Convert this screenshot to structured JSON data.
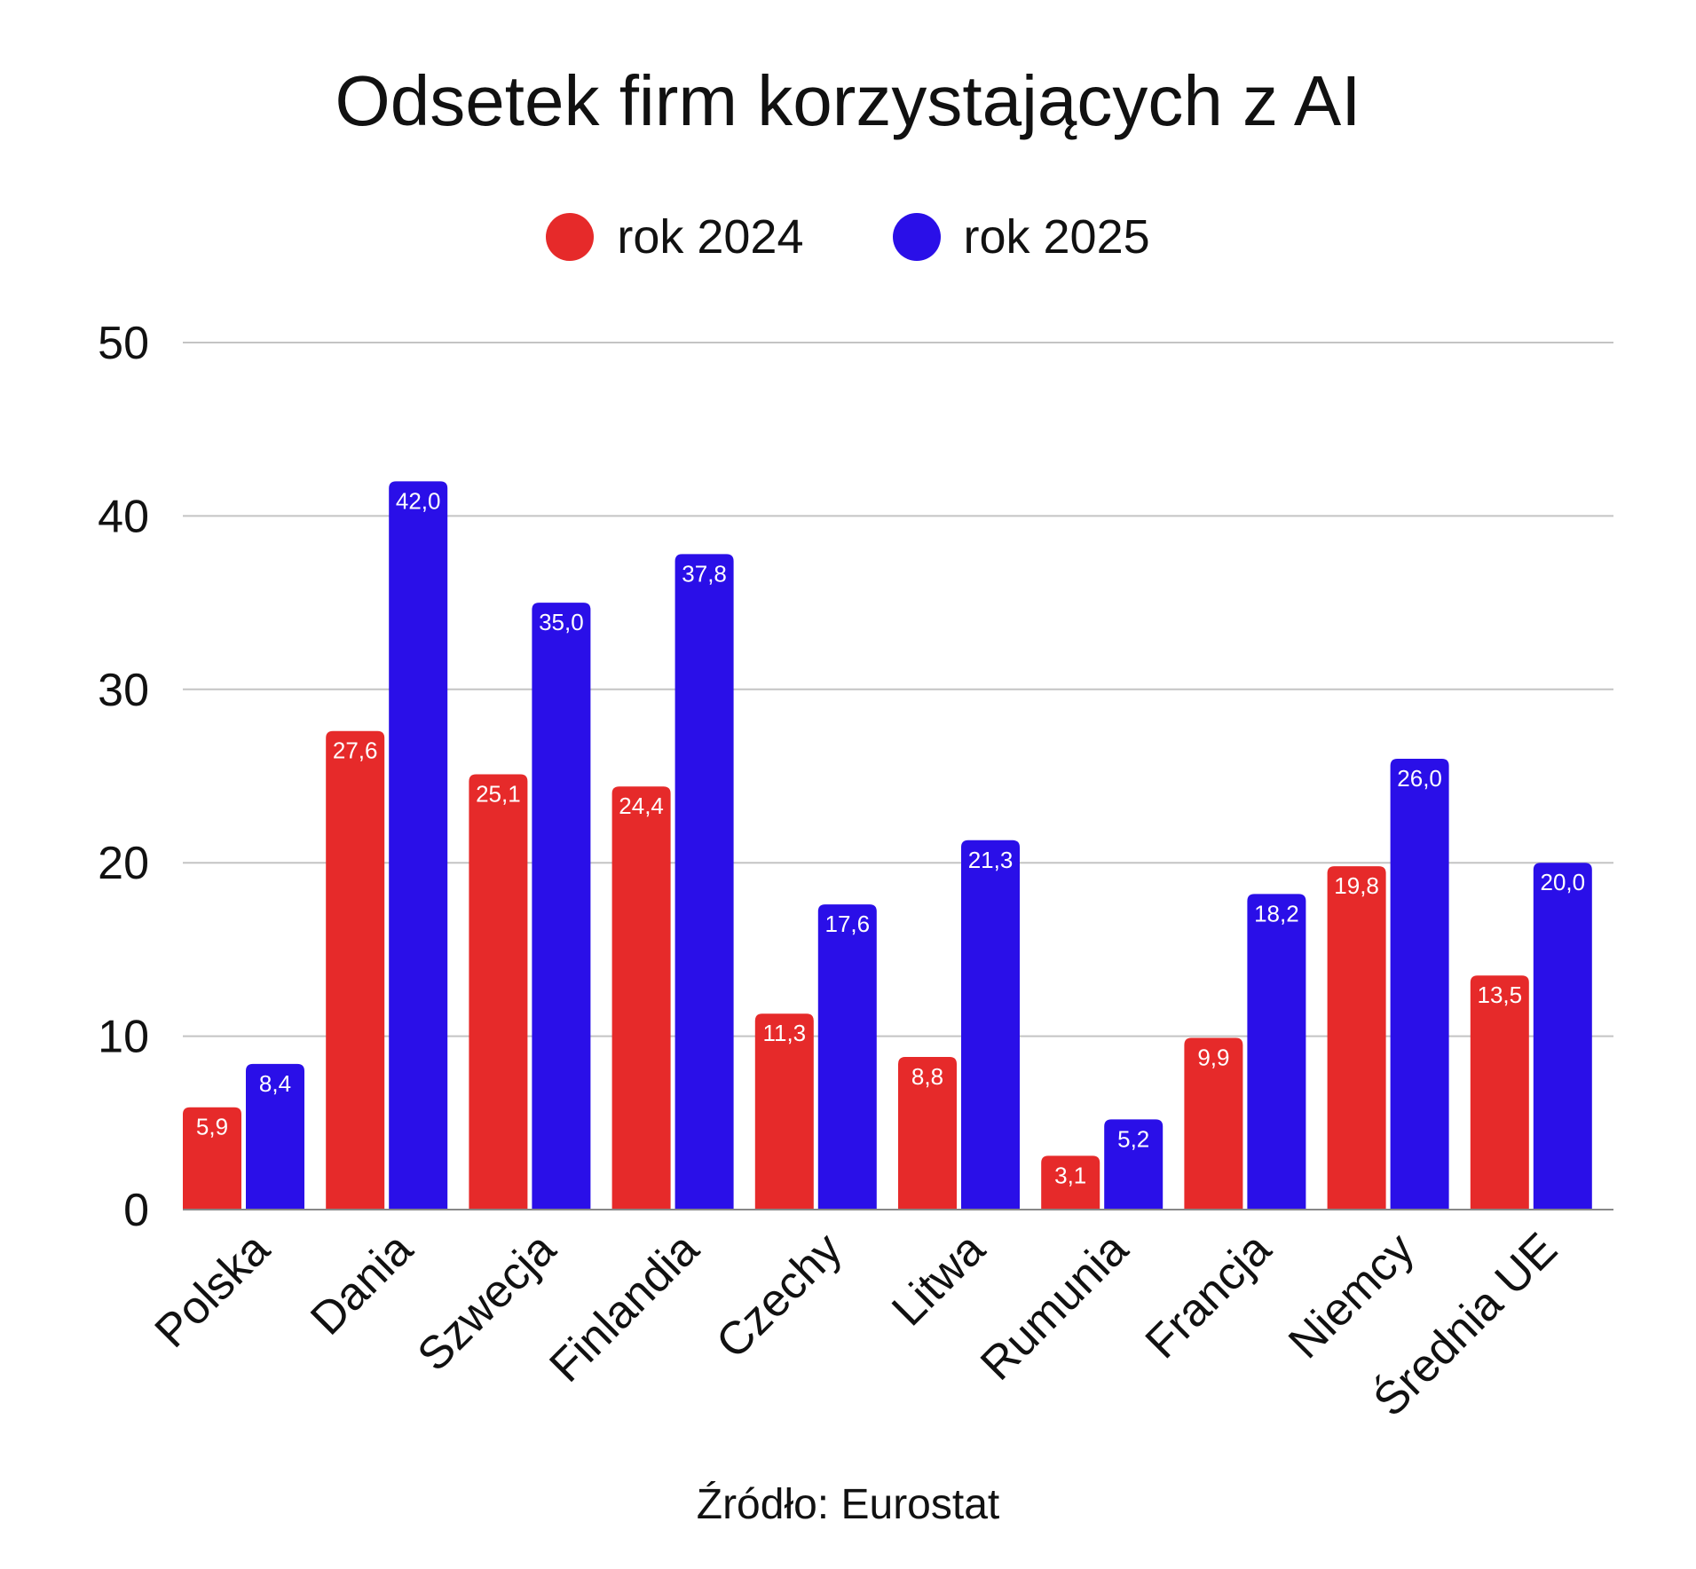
{
  "colors": {
    "rok_2024": "#e62a2a",
    "rok_2025": "#2a0fe8",
    "grid": "#c4c4c4",
    "axis": "#888888"
  },
  "chart_data": {
    "type": "bar",
    "title": "Odsetek firm korzystających z AI",
    "categories": [
      "Polska",
      "Dania",
      "Szwecja",
      "Finlandia",
      "Czechy",
      "Litwa",
      "Rumunia",
      "Francja",
      "Niemcy",
      "Średnia UE"
    ],
    "series": [
      {
        "name": "rok 2024",
        "color": "#e62a2a",
        "values": [
          5.9,
          27.6,
          25.1,
          24.4,
          11.3,
          8.8,
          3.1,
          9.9,
          19.8,
          13.5
        ],
        "labels": [
          "5,9",
          "27,6",
          "25,1",
          "24,4",
          "11,3",
          "8,8",
          "3,1",
          "9,9",
          "19,8",
          "13,5"
        ]
      },
      {
        "name": "rok 2025",
        "color": "#2a0fe8",
        "values": [
          8.4,
          42.0,
          35.0,
          37.8,
          17.6,
          21.3,
          5.2,
          18.2,
          26.0,
          20.0
        ],
        "labels": [
          "8,4",
          "42,0",
          "35,0",
          "37,8",
          "17,6",
          "21,3",
          "5,2",
          "18,2",
          "26,0",
          "20,0"
        ]
      }
    ],
    "ylim": [
      0,
      50
    ],
    "yticks": [
      "0",
      "10",
      "20",
      "30",
      "40",
      "50"
    ],
    "grid": true,
    "legend": "top",
    "source": "Źródło: Eurostat"
  }
}
